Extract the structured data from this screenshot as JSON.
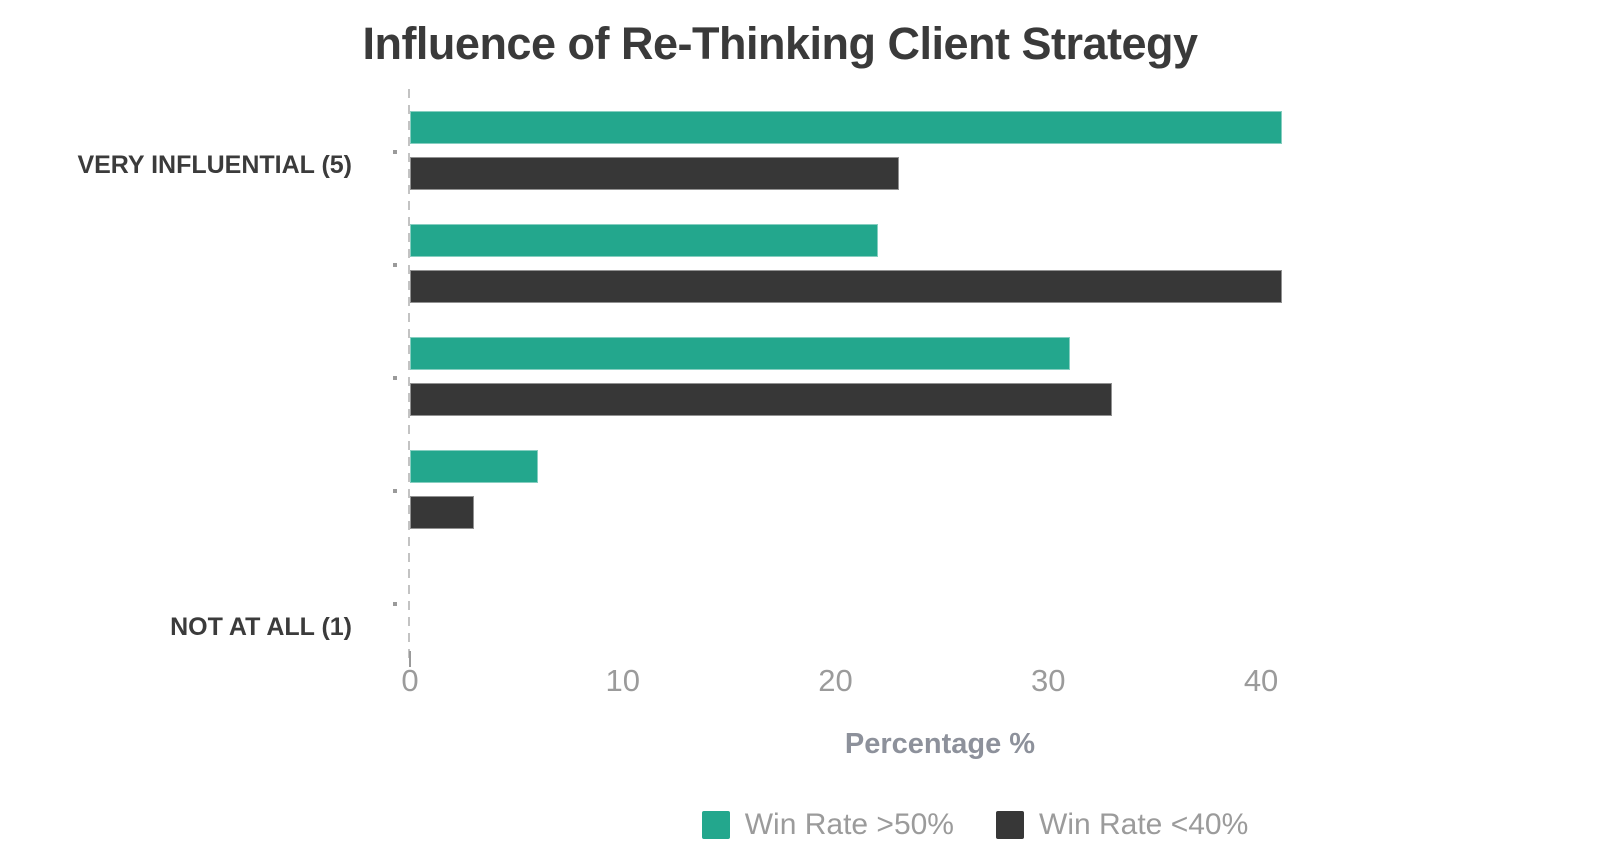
{
  "chart_data": {
    "type": "bar",
    "orientation": "horizontal",
    "title": "Influence of Re-Thinking Client Strategy",
    "category_labels": [
      "VERY INFLUENTIAL (5)",
      "",
      "",
      "",
      "NOT AT ALL (1)"
    ],
    "series": [
      {
        "name": "Win Rate >50%",
        "color": "#23A78D",
        "values": [
          41,
          22,
          31,
          6,
          0
        ]
      },
      {
        "name": "Win Rate <40%",
        "color": "#373737",
        "values": [
          23,
          41,
          33,
          3,
          0
        ]
      }
    ],
    "xlabel": "Percentage %",
    "x_ticks": [
      "0",
      "10",
      "20",
      "30",
      "40"
    ],
    "xlim": [
      0,
      47
    ],
    "grid": false,
    "legend_position": "bottom",
    "style": {
      "title_color": "#3a3a3a",
      "category_label_color": "#3b3b3b",
      "tick_label_color": "#9b9b9b",
      "axis_label_color": "#8d919b",
      "legend_text_color": "#9b9b9b",
      "axis_line_color": "#c3c3c3"
    }
  }
}
